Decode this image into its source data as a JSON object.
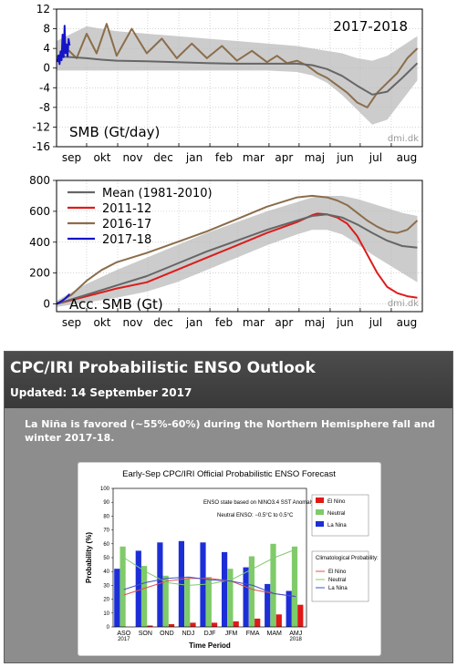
{
  "chart_data": [
    {
      "type": "line",
      "title": "2017-2018",
      "ylabel": "SMB (Gt/day)",
      "watermark": "dmi.dk",
      "ylim": [
        -16,
        12
      ],
      "y_ticks": [
        "12",
        "8",
        "4",
        "0",
        "-4",
        "-8",
        "-12",
        "-16"
      ],
      "month_labels": [
        "sep",
        "okt",
        "nov",
        "dec",
        "jan",
        "feb",
        "mar",
        "apr",
        "maj",
        "jun",
        "jul",
        "aug"
      ],
      "grid": true,
      "series": [
        {
          "role": "current",
          "color": "#1414c8",
          "x": [
            1,
            2,
            3,
            4,
            5,
            6,
            7,
            8,
            9,
            10,
            11,
            12,
            13
          ],
          "y": [
            1.2,
            2.6,
            0.8,
            3.4,
            1.6,
            6.8,
            2.2,
            8.6,
            3.0,
            4.8,
            2.4,
            5.9,
            4.6
          ]
        },
        {
          "role": "mean",
          "color": "#666666",
          "x": [
            0,
            15,
            30,
            45,
            60,
            90,
            120,
            150,
            180,
            210,
            240,
            255,
            270,
            285,
            300,
            315,
            330,
            345,
            360
          ],
          "y": [
            2.4,
            2.2,
            2.0,
            1.7,
            1.5,
            1.4,
            1.2,
            1.0,
            0.9,
            0.9,
            0.9,
            0.6,
            -0.2,
            -1.6,
            -3.6,
            -5.4,
            -4.8,
            -2.0,
            1.0
          ]
        },
        {
          "role": "previous",
          "color": "#8b6d4b",
          "x": [
            0,
            10,
            20,
            30,
            40,
            50,
            60,
            75,
            90,
            105,
            120,
            135,
            150,
            165,
            180,
            195,
            210,
            220,
            230,
            240,
            250,
            260,
            270,
            280,
            290,
            300,
            310,
            320,
            330,
            340,
            350,
            360
          ],
          "y": [
            1.5,
            4.0,
            2.0,
            7.0,
            3.0,
            9.0,
            2.5,
            8.0,
            3.0,
            6.0,
            2.0,
            5.0,
            2.0,
            4.5,
            1.5,
            3.5,
            1.2,
            2.5,
            1.0,
            1.5,
            0.5,
            -1.0,
            -2.0,
            -3.5,
            -5.0,
            -7.0,
            -8.0,
            -5.0,
            -3.0,
            -1.0,
            2.0,
            4.0
          ]
        }
      ],
      "range_band": {
        "x": [
          0,
          30,
          60,
          90,
          120,
          150,
          180,
          210,
          240,
          255,
          270,
          285,
          300,
          315,
          330,
          345,
          360
        ],
        "upper": [
          5.5,
          8.5,
          7.5,
          7.0,
          6.5,
          6.0,
          5.5,
          5.0,
          4.5,
          4.0,
          3.5,
          3.0,
          2.0,
          1.5,
          2.5,
          4.5,
          6.5
        ],
        "lower": [
          -0.5,
          -0.5,
          -0.5,
          -0.5,
          -0.5,
          -0.5,
          -0.5,
          -0.5,
          -0.8,
          -1.5,
          -3.0,
          -5.5,
          -8.5,
          -11.5,
          -10.5,
          -6.5,
          -2.5
        ]
      }
    },
    {
      "type": "line",
      "ylabel": "Acc. SMB (Gt)",
      "watermark": "dmi.dk",
      "ylim": [
        -50,
        800
      ],
      "y_ticks": [
        "800",
        "600",
        "400",
        "200",
        "0"
      ],
      "month_labels": [
        "sep",
        "okt",
        "nov",
        "dec",
        "jan",
        "feb",
        "mar",
        "apr",
        "maj",
        "jun",
        "jul",
        "aug"
      ],
      "grid": true,
      "legend_position": "top-left",
      "series": [
        {
          "name": "Mean (1981-2010)",
          "color": "#666666",
          "x": [
            0,
            30,
            60,
            90,
            120,
            150,
            180,
            210,
            240,
            255,
            270,
            285,
            300,
            315,
            330,
            345,
            360
          ],
          "y": [
            0,
            60,
            120,
            180,
            260,
            340,
            410,
            480,
            540,
            570,
            580,
            560,
            515,
            460,
            410,
            375,
            365
          ]
        },
        {
          "name": "2011-12",
          "color": "#dd1c1c",
          "x": [
            0,
            30,
            60,
            90,
            120,
            150,
            180,
            210,
            240,
            250,
            255,
            260,
            270,
            280,
            290,
            300,
            310,
            320,
            330,
            340,
            350,
            360
          ],
          "y": [
            0,
            50,
            100,
            140,
            220,
            300,
            380,
            460,
            530,
            560,
            575,
            585,
            580,
            560,
            520,
            440,
            320,
            200,
            110,
            70,
            50,
            40
          ]
        },
        {
          "name": "2016-17",
          "color": "#8b6d4b",
          "x": [
            0,
            15,
            30,
            45,
            60,
            90,
            120,
            150,
            180,
            210,
            240,
            255,
            270,
            280,
            290,
            300,
            310,
            320,
            330,
            340,
            350,
            360
          ],
          "y": [
            0,
            60,
            150,
            220,
            270,
            330,
            400,
            470,
            550,
            630,
            690,
            700,
            690,
            670,
            640,
            590,
            540,
            500,
            470,
            460,
            480,
            540
          ]
        },
        {
          "name": "2017-18",
          "color": "#1414c8",
          "x": [
            0,
            3,
            6,
            9,
            12,
            13
          ],
          "y": [
            0,
            10,
            22,
            38,
            56,
            64
          ]
        }
      ],
      "range_band": {
        "x": [
          0,
          30,
          60,
          90,
          120,
          150,
          180,
          210,
          240,
          255,
          270,
          285,
          300,
          315,
          330,
          345,
          360
        ],
        "upper": [
          20,
          130,
          220,
          300,
          380,
          460,
          530,
          600,
          660,
          690,
          700,
          700,
          680,
          650,
          620,
          590,
          570
        ],
        "lower": [
          -20,
          10,
          40,
          80,
          140,
          220,
          300,
          380,
          450,
          480,
          480,
          450,
          390,
          320,
          260,
          200,
          140
        ]
      }
    },
    {
      "type": "bar",
      "title": "Early-Sep CPC/IRI Official Probabilistic ENSO Forecast",
      "xlabel": "Time Period",
      "ylabel": "Probability (%)",
      "ylim": [
        0,
        100
      ],
      "y_ticks": [
        "0",
        "10",
        "20",
        "30",
        "40",
        "50",
        "60",
        "70",
        "80",
        "90",
        "100"
      ],
      "categories": [
        "ASO",
        "SON",
        "OND",
        "NDJ",
        "DJF",
        "JFM",
        "FMA",
        "MAM",
        "AMJ"
      ],
      "category_years": {
        "ASO": "2017",
        "AMJ": "2018"
      },
      "series": [
        {
          "name": "El Nino",
          "color": "#e01818",
          "values": [
            0,
            1,
            2,
            3,
            3,
            4,
            6,
            9,
            16
          ]
        },
        {
          "name": "Neutral",
          "color": "#7fcb6a",
          "values": [
            58,
            44,
            37,
            35,
            36,
            42,
            51,
            60,
            58
          ]
        },
        {
          "name": "La Nina",
          "color": "#1c2fd6",
          "values": [
            42,
            55,
            61,
            62,
            61,
            54,
            43,
            31,
            26
          ]
        }
      ],
      "climatology": {
        "label": "Climatological Probability:",
        "series": [
          {
            "name": "El Nino",
            "color": "#e05050",
            "values": [
              23,
              28,
              33,
              35,
              35,
              33,
              27,
              24,
              22
            ]
          },
          {
            "name": "Neutral",
            "color": "#84c870",
            "values": [
              50,
              40,
              32,
              30,
              31,
              34,
              42,
              50,
              56
            ]
          },
          {
            "name": "La Nina",
            "color": "#4050c8",
            "values": [
              27,
              32,
              35,
              36,
              34,
              33,
              30,
              24,
              22
            ]
          }
        ]
      },
      "annotations": {
        "line1": "ENSO state based on NINO3.4 SST Anomaly",
        "line2": "Neutral ENSO: −0.5°C to 0.5°C"
      }
    }
  ],
  "enso_panel": {
    "title": "CPC/IRI Probabilistic ENSO Outlook",
    "updated": "Updated: 14 September 2017",
    "note": "La Niña is favored (~55%-60%) during the Northern Hemisphere fall and winter 2017-18."
  }
}
